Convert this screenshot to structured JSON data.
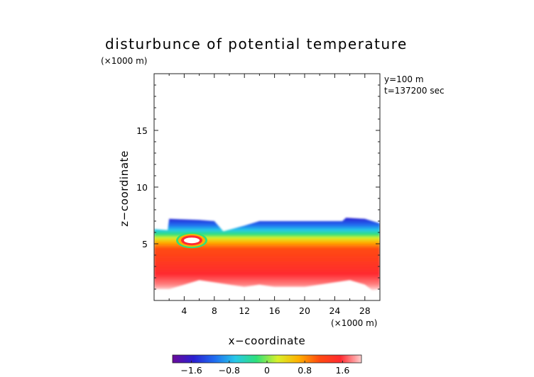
{
  "chart_data": {
    "type": "heatmap",
    "title": "disturbunce of potential temperature",
    "unit_top": "(×1000 m)",
    "unit_bottom": "(×1000 m)",
    "info_lines": [
      "y=100  m",
      "t=137200 sec"
    ],
    "xlabel": "x−coordinate",
    "ylabel": "z−coordinate",
    "xlim": [
      0,
      30
    ],
    "ylim": [
      0,
      20
    ],
    "xticks": [
      4,
      8,
      12,
      16,
      20,
      24,
      28
    ],
    "xtick_labels": [
      "4",
      "8",
      "12",
      "16",
      "20",
      "24",
      "28"
    ],
    "yticks": [
      5,
      10,
      15
    ],
    "ytick_labels": [
      "5",
      "10",
      "15"
    ],
    "colorbar": {
      "range": [
        -2.0,
        2.0
      ],
      "ticks": [
        -1.6,
        -0.8,
        0,
        0.8,
        1.6
      ],
      "tick_labels": [
        "−1.6",
        "−0.8",
        "0",
        "0.8",
        "1.6"
      ],
      "colors": [
        "#6a0a9a",
        "#2b1fd0",
        "#1f6cf0",
        "#27c8e8",
        "#2ee07a",
        "#d8f02a",
        "#ffb000",
        "#ff4a10",
        "#ff2a30",
        "#ffd0d0"
      ]
    },
    "field_summary": {
      "cloud_top_z": [
        [
          0,
          6.3
        ],
        [
          1.8,
          6.2
        ],
        [
          2.0,
          7.2
        ],
        [
          6.0,
          7.1
        ],
        [
          8.0,
          7.0
        ],
        [
          9.2,
          6.1
        ],
        [
          12.0,
          6.6
        ],
        [
          14.0,
          7.0
        ],
        [
          20.0,
          7.0
        ],
        [
          25.0,
          7.0
        ],
        [
          25.5,
          7.3
        ],
        [
          28.0,
          7.2
        ],
        [
          30.0,
          6.8
        ]
      ],
      "cloud_bottom_z": [
        [
          0,
          1.0
        ],
        [
          2.0,
          1.0
        ],
        [
          4.0,
          1.4
        ],
        [
          6.0,
          1.8
        ],
        [
          8.0,
          1.6
        ],
        [
          10.0,
          1.4
        ],
        [
          12.0,
          1.2
        ],
        [
          14.0,
          1.4
        ],
        [
          16.0,
          1.2
        ],
        [
          20.0,
          1.2
        ],
        [
          24.0,
          1.6
        ],
        [
          26.0,
          1.8
        ],
        [
          28.0,
          1.4
        ],
        [
          29.0,
          0.9
        ],
        [
          30.0,
          1.0
        ]
      ],
      "warm_core": {
        "x": 5.0,
        "z": 5.3,
        "value": 2.0
      }
    }
  }
}
